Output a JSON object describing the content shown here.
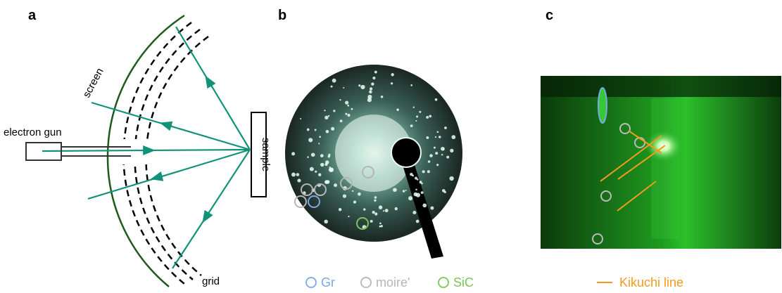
{
  "panels": [
    {
      "label": "a",
      "annotations": {
        "electron_gun": "electron gun",
        "screen": "screen",
        "sample": "sample",
        "grid": "grid"
      }
    },
    {
      "label": "b",
      "legend": [
        {
          "name": "Gr",
          "color": "#7ba7e6"
        },
        {
          "name": "moire'",
          "color": "#b5b5b5"
        },
        {
          "name": "SiC",
          "color": "#7cc45a"
        }
      ]
    },
    {
      "label": "c",
      "legend": [
        {
          "name": "Kikuchi line",
          "color": "#f39a1c"
        }
      ]
    }
  ]
}
